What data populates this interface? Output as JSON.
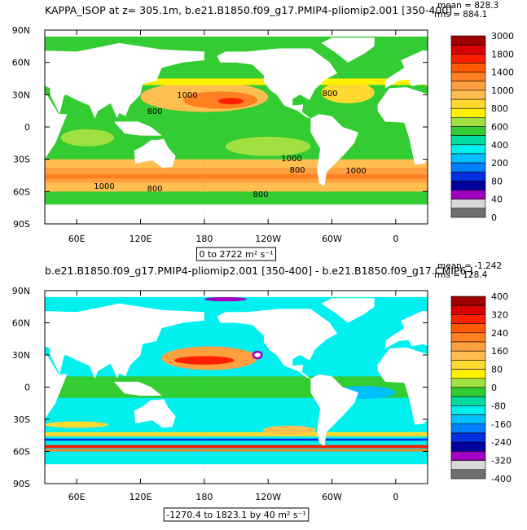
{
  "panels": [
    {
      "title": "KAPPA_ISOP at z= 305.1m, b.e21.B1850.f09_g17.PMIP4-pliomip2.001 [350-400]",
      "mean": "mean = 828.3",
      "rms": "rms = 884.1",
      "range": "0 to 2722 m² s⁻¹",
      "colorbar": {
        "labels": [
          "3000",
          "1800",
          "1400",
          "1000",
          "800",
          "600",
          "400",
          "200",
          "80",
          "40",
          "0"
        ],
        "colors": [
          "#a00000",
          "#d80000",
          "#ff2000",
          "#ff5a00",
          "#ff8020",
          "#ffa040",
          "#ffbe50",
          "#ffd830",
          "#fff000",
          "#a0e040",
          "#33cc33",
          "#00dca0",
          "#00f0f0",
          "#00c0ff",
          "#0080ff",
          "#0030e0",
          "#0000a0",
          "#a000c0",
          "#d8d8d8",
          "#707070"
        ]
      },
      "contour_labels": [
        "1000",
        "800",
        "800",
        "1000",
        "800",
        "1000",
        "800",
        "1000",
        "800"
      ]
    },
    {
      "title": "b.e21.B1850.f09_g17.PMIP4-pliomip2.001 [350-400] - b.e21.B1850.f09_g17.CMIP6-I",
      "mean": "mean = -1.242",
      "rms": "rms = 128.4",
      "range": "-1270.4 to 1823.1 by 40 m² s⁻¹",
      "colorbar": {
        "labels": [
          "400",
          "320",
          "240",
          "160",
          "80",
          "0",
          "-80",
          "-160",
          "-240",
          "-320",
          "-400"
        ],
        "colors": [
          "#a00000",
          "#d80000",
          "#ff2000",
          "#ff5a00",
          "#ff8020",
          "#ffa040",
          "#ffbe50",
          "#ffd830",
          "#fff000",
          "#a0e040",
          "#33cc33",
          "#00dca0",
          "#00f0f0",
          "#00c0ff",
          "#0080ff",
          "#0030e0",
          "#0000a0",
          "#a000c0",
          "#d8d8d8",
          "#707070"
        ]
      },
      "contour_labels": []
    }
  ],
  "lat_labels": [
    "90N",
    "60N",
    "30N",
    "0",
    "30S",
    "60S",
    "90S"
  ],
  "lon_labels": [
    "60E",
    "120E",
    "180",
    "120W",
    "60W",
    "0"
  ]
}
